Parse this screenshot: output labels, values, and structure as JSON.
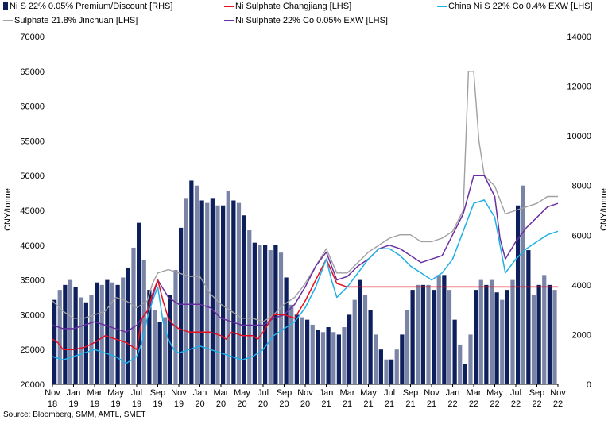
{
  "legend": [
    {
      "label": "Ni S 22% 0.05% Premium/Discount [RHS]",
      "color": "#0d1f5c",
      "kind": "bar"
    },
    {
      "label": "Ni Sulphate Changjiang [LHS]",
      "color": "#e8101f",
      "kind": "line"
    },
    {
      "label": "China Ni S 22% Co 0.4% EXW [LHS]",
      "color": "#1fb0e6",
      "kind": "line"
    },
    {
      "label": "Sulphate 21.8% Jinchuan [LHS]",
      "color": "#a0a0a0",
      "kind": "line"
    },
    {
      "label": "Ni Sulphate 22% Co 0.05% EXW [LHS]",
      "color": "#6a2fa0",
      "kind": "line"
    }
  ],
  "ylabel_left": "CNY/tonne",
  "ylabel_right": "CNY/tonne",
  "source": "Source: Bloomberg, SMM, AMTL, SMET",
  "chart_data": {
    "type": "bar+line",
    "x_ticks": [
      {
        "m": "Nov",
        "y": "18"
      },
      {
        "m": "Jan",
        "y": "19"
      },
      {
        "m": "Mar",
        "y": "19"
      },
      {
        "m": "May",
        "y": "19"
      },
      {
        "m": "Jul",
        "y": "19"
      },
      {
        "m": "Sep",
        "y": "19"
      },
      {
        "m": "Nov",
        "y": "19"
      },
      {
        "m": "Jan",
        "y": "20"
      },
      {
        "m": "Mar",
        "y": "20"
      },
      {
        "m": "May",
        "y": "20"
      },
      {
        "m": "Jul",
        "y": "20"
      },
      {
        "m": "Sep",
        "y": "20"
      },
      {
        "m": "Nov",
        "y": "20"
      },
      {
        "m": "Jan",
        "y": "21"
      },
      {
        "m": "Mar",
        "y": "21"
      },
      {
        "m": "May",
        "y": "21"
      },
      {
        "m": "Jul",
        "y": "21"
      },
      {
        "m": "Sep",
        "y": "21"
      },
      {
        "m": "Nov",
        "y": "21"
      },
      {
        "m": "Jan",
        "y": "22"
      },
      {
        "m": "Mar",
        "y": "22"
      },
      {
        "m": "May",
        "y": "22"
      },
      {
        "m": "Jul",
        "y": "22"
      },
      {
        "m": "Sep",
        "y": "22"
      },
      {
        "m": "Nov",
        "y": "22"
      }
    ],
    "left_axis": {
      "min": 20000,
      "max": 70000,
      "ticks": [
        20000,
        25000,
        30000,
        35000,
        40000,
        45000,
        50000,
        55000,
        60000,
        65000,
        70000
      ]
    },
    "right_axis": {
      "min": 0,
      "max": 14000,
      "ticks": [
        0,
        2000,
        4000,
        6000,
        8000,
        10000,
        12000,
        14000
      ]
    },
    "x_range_months": [
      0,
      48
    ],
    "premium_bars_rhs": {
      "name": "Ni S 22% 0.05% Premium/Discount [RHS]",
      "points": [
        [
          0.0,
          3400
        ],
        [
          0.5,
          3800
        ],
        [
          1.0,
          4000
        ],
        [
          1.5,
          4200
        ],
        [
          2.0,
          3900
        ],
        [
          2.5,
          3500
        ],
        [
          3.0,
          3300
        ],
        [
          3.5,
          3600
        ],
        [
          4.0,
          4100
        ],
        [
          4.5,
          4000
        ],
        [
          5.0,
          4200
        ],
        [
          5.5,
          4100
        ],
        [
          6.0,
          4000
        ],
        [
          6.5,
          4300
        ],
        [
          7.0,
          4700
        ],
        [
          7.5,
          5500
        ],
        [
          8.0,
          6500
        ],
        [
          8.5,
          5000
        ],
        [
          9.0,
          3800
        ],
        [
          9.5,
          3000
        ],
        [
          10.0,
          2500
        ],
        [
          10.5,
          2700
        ],
        [
          11.0,
          3600
        ],
        [
          11.5,
          4600
        ],
        [
          12.0,
          6300
        ],
        [
          12.5,
          7500
        ],
        [
          13.0,
          8200
        ],
        [
          13.5,
          8000
        ],
        [
          14.0,
          7400
        ],
        [
          14.5,
          7300
        ],
        [
          15.0,
          7500
        ],
        [
          15.5,
          7200
        ],
        [
          16.0,
          7200
        ],
        [
          16.5,
          7800
        ],
        [
          17.0,
          7400
        ],
        [
          17.5,
          7300
        ],
        [
          18.0,
          6800
        ],
        [
          18.5,
          6200
        ],
        [
          19.0,
          5700
        ],
        [
          19.5,
          5600
        ],
        [
          20.0,
          5600
        ],
        [
          20.5,
          5400
        ],
        [
          21.0,
          5600
        ],
        [
          21.5,
          5300
        ],
        [
          22.0,
          4300
        ],
        [
          22.5,
          3200
        ],
        [
          23.0,
          2800
        ],
        [
          23.5,
          2700
        ],
        [
          24.0,
          2600
        ],
        [
          24.5,
          2400
        ],
        [
          25.0,
          2200
        ],
        [
          25.5,
          2100
        ],
        [
          26.0,
          2300
        ],
        [
          26.5,
          2100
        ],
        [
          27.0,
          2000
        ],
        [
          27.5,
          2300
        ],
        [
          28.0,
          2800
        ],
        [
          28.5,
          3400
        ],
        [
          29.0,
          4200
        ],
        [
          29.5,
          3600
        ],
        [
          30.0,
          3000
        ],
        [
          30.5,
          2000
        ],
        [
          31.0,
          1400
        ],
        [
          31.5,
          1000
        ],
        [
          32.0,
          1000
        ],
        [
          32.5,
          1400
        ],
        [
          33.0,
          2000
        ],
        [
          33.5,
          3000
        ],
        [
          34.0,
          3800
        ],
        [
          34.5,
          4000
        ],
        [
          35.0,
          4000
        ],
        [
          35.5,
          4000
        ],
        [
          36.0,
          3800
        ],
        [
          36.5,
          4400
        ],
        [
          37.0,
          4400
        ],
        [
          37.5,
          3800
        ],
        [
          38.0,
          2600
        ],
        [
          38.5,
          1600
        ],
        [
          39.0,
          800
        ],
        [
          39.5,
          2000
        ],
        [
          40.0,
          3800
        ],
        [
          40.5,
          4200
        ],
        [
          41.0,
          4000
        ],
        [
          41.5,
          4200
        ],
        [
          42.0,
          3700
        ],
        [
          42.5,
          3400
        ],
        [
          43.0,
          3800
        ],
        [
          43.5,
          4200
        ],
        [
          44.0,
          7200
        ],
        [
          44.5,
          8000
        ],
        [
          45.0,
          5400
        ],
        [
          45.5,
          3600
        ],
        [
          46.0,
          4000
        ],
        [
          46.5,
          4400
        ],
        [
          47.0,
          4000
        ],
        [
          47.5,
          3800
        ]
      ]
    },
    "series": [
      {
        "name": "Ni Sulphate Changjiang [LHS]",
        "points": [
          [
            0,
            26500
          ],
          [
            0.5,
            26000
          ],
          [
            1,
            25000
          ],
          [
            2,
            25000
          ],
          [
            3,
            25300
          ],
          [
            4,
            26000
          ],
          [
            5,
            27000
          ],
          [
            6,
            26500
          ],
          [
            7,
            26000
          ],
          [
            8,
            25000
          ],
          [
            8.5,
            29500
          ],
          [
            9,
            30500
          ],
          [
            9.5,
            33000
          ],
          [
            10,
            35000
          ],
          [
            10.5,
            32000
          ],
          [
            11,
            29500
          ],
          [
            11.5,
            28500
          ],
          [
            12,
            28000
          ],
          [
            13,
            27500
          ],
          [
            14,
            27500
          ],
          [
            15,
            27500
          ],
          [
            16,
            27000
          ],
          [
            16.5,
            26500
          ],
          [
            17,
            27500
          ],
          [
            18,
            27000
          ],
          [
            19,
            27000
          ],
          [
            19.5,
            26500
          ],
          [
            20,
            27500
          ],
          [
            21,
            30000
          ],
          [
            22,
            30000
          ],
          [
            23,
            29500
          ],
          [
            24,
            32000
          ],
          [
            25,
            35000
          ],
          [
            26,
            38000
          ],
          [
            27,
            34500
          ],
          [
            28,
            34000
          ],
          [
            30,
            34000
          ],
          [
            33,
            34000
          ],
          [
            36,
            34000
          ],
          [
            39,
            34000
          ],
          [
            42,
            34000
          ],
          [
            45,
            34000
          ],
          [
            48,
            34000
          ]
        ]
      },
      {
        "name": "China Ni S 22% Co 0.4% EXW [LHS]",
        "points": [
          [
            0,
            24000
          ],
          [
            1,
            23500
          ],
          [
            2,
            24000
          ],
          [
            3,
            24500
          ],
          [
            4,
            25000
          ],
          [
            5,
            24500
          ],
          [
            6,
            24000
          ],
          [
            7,
            23000
          ],
          [
            8,
            24000
          ],
          [
            8.5,
            26000
          ],
          [
            9,
            29500
          ],
          [
            9.5,
            32000
          ],
          [
            10,
            34000
          ],
          [
            10.5,
            29000
          ],
          [
            11,
            26500
          ],
          [
            11.5,
            25000
          ],
          [
            12,
            24500
          ],
          [
            13,
            25000
          ],
          [
            14,
            25500
          ],
          [
            15,
            25000
          ],
          [
            16,
            24500
          ],
          [
            17,
            24000
          ],
          [
            18,
            23500
          ],
          [
            19,
            24000
          ],
          [
            20,
            25000
          ],
          [
            21,
            27000
          ],
          [
            22,
            28000
          ],
          [
            23,
            29000
          ],
          [
            24,
            31000
          ],
          [
            25,
            34000
          ],
          [
            26,
            38000
          ],
          [
            26.5,
            35000
          ],
          [
            27,
            32500
          ],
          [
            28,
            34000
          ],
          [
            29,
            36000
          ],
          [
            30,
            38000
          ],
          [
            31,
            39500
          ],
          [
            32,
            39500
          ],
          [
            33,
            38500
          ],
          [
            34,
            37000
          ],
          [
            35,
            36000
          ],
          [
            36,
            35000
          ],
          [
            37,
            36000
          ],
          [
            38,
            38000
          ],
          [
            39,
            42000
          ],
          [
            40,
            46000
          ],
          [
            41,
            46500
          ],
          [
            42,
            44000
          ],
          [
            43,
            36000
          ],
          [
            44,
            38000
          ],
          [
            45,
            39500
          ],
          [
            46,
            40500
          ],
          [
            47,
            41500
          ],
          [
            48,
            42000
          ]
        ]
      },
      {
        "name": "Sulphate 21.8% Jinchuan [LHS]",
        "points": [
          [
            0,
            32000
          ],
          [
            1,
            30500
          ],
          [
            2,
            29500
          ],
          [
            3,
            29500
          ],
          [
            4,
            30000
          ],
          [
            5,
            30500
          ],
          [
            6,
            32500
          ],
          [
            7,
            32000
          ],
          [
            8,
            31000
          ],
          [
            8.5,
            31500
          ],
          [
            9,
            32000
          ],
          [
            9.5,
            34500
          ],
          [
            10,
            36000
          ],
          [
            11,
            36500
          ],
          [
            12,
            36000
          ],
          [
            13,
            35500
          ],
          [
            14,
            35500
          ],
          [
            15,
            33000
          ],
          [
            16,
            31500
          ],
          [
            17,
            30500
          ],
          [
            18,
            29500
          ],
          [
            19,
            29500
          ],
          [
            20,
            29000
          ],
          [
            21,
            30000
          ],
          [
            22,
            31500
          ],
          [
            23,
            32500
          ],
          [
            24,
            34500
          ],
          [
            25,
            37000
          ],
          [
            26,
            39500
          ],
          [
            27,
            36000
          ],
          [
            28,
            36000
          ],
          [
            30,
            39000
          ],
          [
            32,
            41000
          ],
          [
            33,
            41500
          ],
          [
            34,
            41500
          ],
          [
            35,
            40500
          ],
          [
            36,
            40500
          ],
          [
            37,
            41000
          ],
          [
            38,
            42000
          ],
          [
            39,
            45000
          ],
          [
            39.5,
            65000
          ],
          [
            40,
            65000
          ],
          [
            40.5,
            55000
          ],
          [
            41,
            50000
          ],
          [
            42,
            48500
          ],
          [
            43,
            44500
          ],
          [
            44,
            45000
          ],
          [
            45,
            45500
          ],
          [
            46,
            46000
          ],
          [
            47,
            47000
          ],
          [
            48,
            47000
          ]
        ]
      },
      {
        "name": "Ni Sulphate 22% Co 0.05% EXW [LHS]",
        "points": [
          [
            0,
            28500
          ],
          [
            1,
            28000
          ],
          [
            2,
            28000
          ],
          [
            3,
            28500
          ],
          [
            4,
            29000
          ],
          [
            5,
            28500
          ],
          [
            6,
            28000
          ],
          [
            7,
            27500
          ],
          [
            8,
            28500
          ],
          [
            9,
            30500
          ],
          [
            9.5,
            32500
          ],
          [
            10,
            35000
          ],
          [
            11,
            32500
          ],
          [
            12,
            31500
          ],
          [
            13,
            31500
          ],
          [
            14,
            31500
          ],
          [
            15,
            31000
          ],
          [
            16,
            29500
          ],
          [
            17,
            29000
          ],
          [
            18,
            28500
          ],
          [
            19,
            28500
          ],
          [
            20,
            28500
          ],
          [
            21,
            29500
          ],
          [
            22,
            30000
          ],
          [
            23,
            31500
          ],
          [
            24,
            34000
          ],
          [
            25,
            37000
          ],
          [
            26,
            39000
          ],
          [
            27,
            35000
          ],
          [
            28,
            35500
          ],
          [
            29,
            37000
          ],
          [
            30,
            38000
          ],
          [
            31,
            39500
          ],
          [
            32,
            40000
          ],
          [
            33,
            39500
          ],
          [
            34,
            38500
          ],
          [
            35,
            37500
          ],
          [
            36,
            38000
          ],
          [
            37,
            38500
          ],
          [
            38,
            41500
          ],
          [
            39,
            44500
          ],
          [
            40,
            50000
          ],
          [
            41,
            50000
          ],
          [
            42,
            47000
          ],
          [
            42.5,
            41000
          ],
          [
            43,
            38000
          ],
          [
            44,
            40500
          ],
          [
            45,
            42500
          ],
          [
            46,
            44000
          ],
          [
            47,
            45500
          ],
          [
            48,
            46000
          ]
        ]
      }
    ]
  }
}
